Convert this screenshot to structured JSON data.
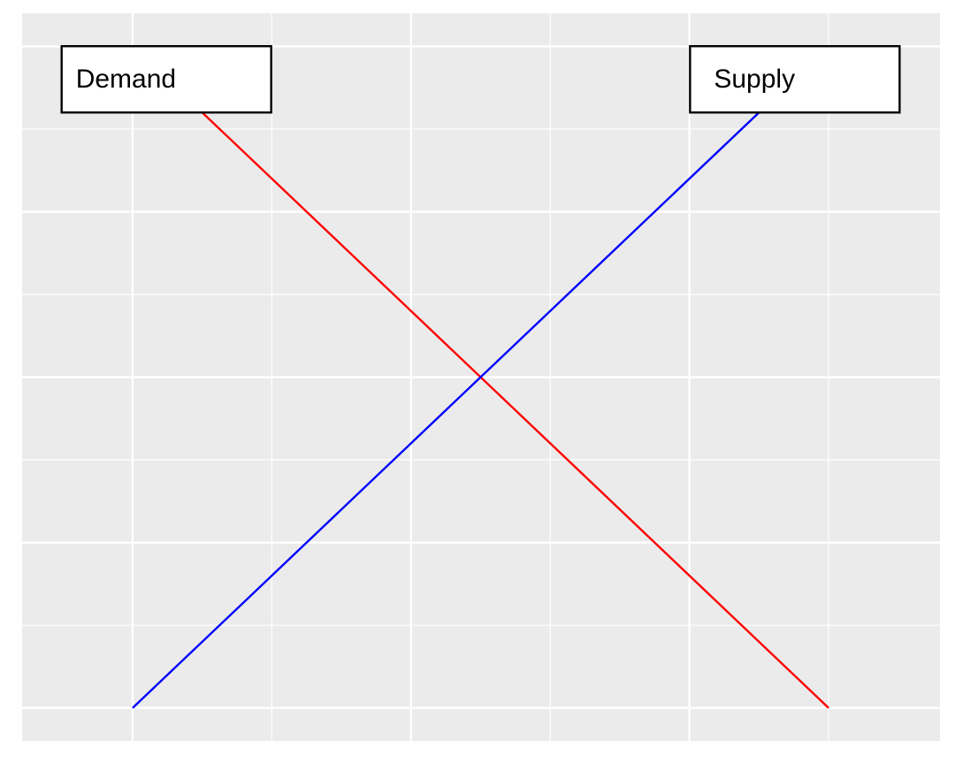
{
  "chart_data": {
    "type": "line",
    "series": [
      {
        "name": "Demand",
        "color": "#ff0000",
        "x": [
          0.5,
          5
        ],
        "values": [
          7.2,
          0
        ]
      },
      {
        "name": "Supply",
        "color": "#0000ff",
        "x": [
          0,
          4.5
        ],
        "values": [
          0,
          7.2
        ]
      }
    ],
    "xlim": [
      -0.794,
      5.8
    ],
    "ylim": [
      -0.4,
      8.4
    ],
    "xticks": [
      0,
      2,
      4
    ],
    "xminor": [
      1,
      3,
      5
    ],
    "yticks": [
      0,
      2,
      4,
      6,
      8
    ],
    "yminor": [
      1,
      3,
      5,
      7
    ],
    "grid": true
  }
}
